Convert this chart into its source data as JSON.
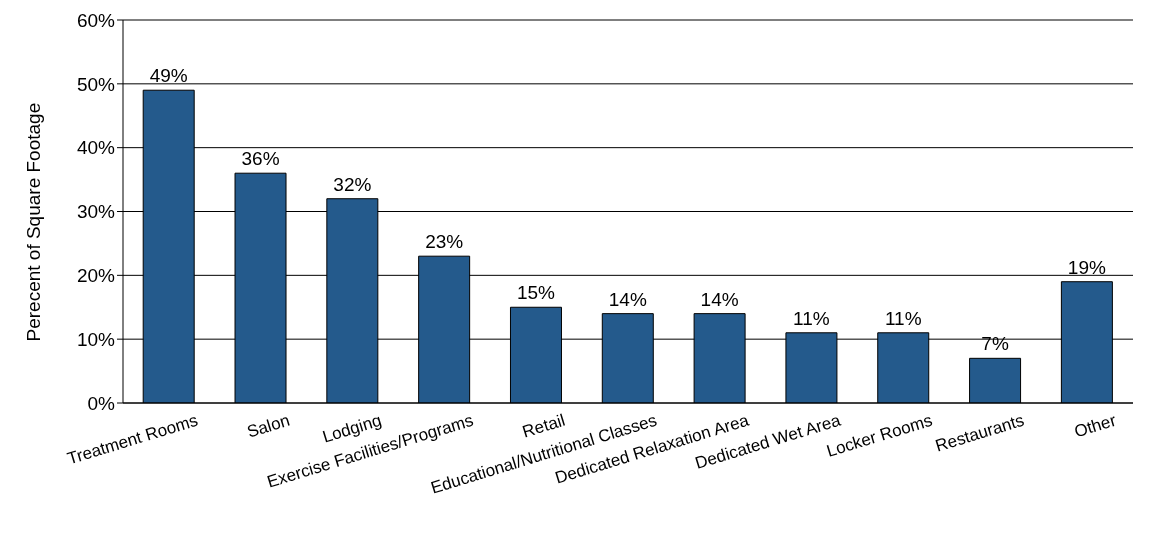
{
  "chart_data": {
    "type": "bar",
    "ylabel": "Perecent of Square Footage",
    "categories": [
      "Treatment Rooms",
      "Salon",
      "Lodging",
      "Exercise Facilities/Programs",
      "Retail",
      "Educational/Nutritional Classes",
      "Dedicated Relaxation Area",
      "Dedicated Wet Area",
      "Locker Rooms",
      "Restaurants",
      "Other"
    ],
    "values": [
      49,
      36,
      32,
      23,
      15,
      14,
      14,
      11,
      11,
      7,
      19
    ],
    "value_labels": [
      "49%",
      "36%",
      "32%",
      "23%",
      "15%",
      "14%",
      "14%",
      "11%",
      "11%",
      "7%",
      "19%"
    ],
    "color": "#245a8c",
    "ylim": [
      0,
      60
    ],
    "yticks": [
      {
        "value": 0,
        "label": "0%"
      },
      {
        "value": 10,
        "label": "10%"
      },
      {
        "value": 20,
        "label": "20%"
      },
      {
        "value": 30,
        "label": "30%"
      },
      {
        "value": 40,
        "label": "40%"
      },
      {
        "value": 50,
        "label": "50%"
      },
      {
        "value": 60,
        "label": "60%"
      }
    ],
    "grid": "y",
    "legend": false
  }
}
